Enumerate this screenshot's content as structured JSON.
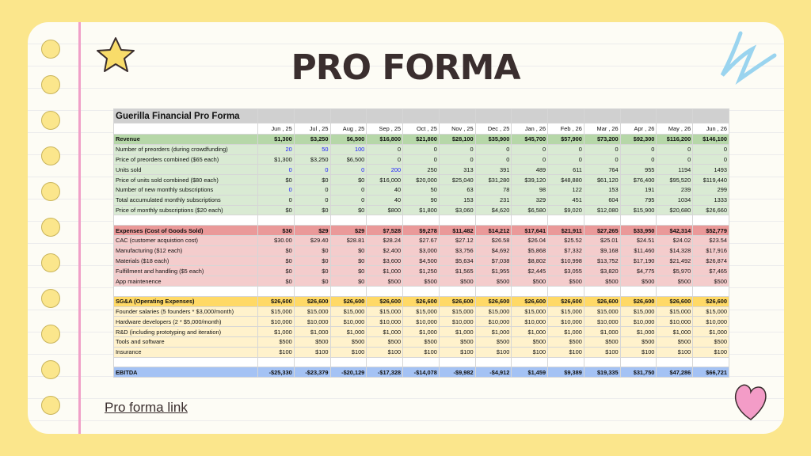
{
  "header": {
    "title": "PRO FORMA"
  },
  "table": {
    "title": "Guerilla Financial Pro Forma",
    "columns": [
      "Jun , 25",
      "Jul , 25",
      "Aug , 25",
      "Sep , 25",
      "Oct , 25",
      "Nov , 25",
      "Dec , 25",
      "Jan , 26",
      "Feb , 26",
      "Mar , 26",
      "Apr , 26",
      "May , 26",
      "Jun , 26"
    ],
    "sections": [
      {
        "rows": [
          {
            "label": "Revenue",
            "values": [
              "$1,300",
              "$3,250",
              "$6,500",
              "$16,800",
              "$21,800",
              "$28,100",
              "$35,900",
              "$45,700",
              "$57,900",
              "$73,200",
              "$92,300",
              "$116,200",
              "$146,100"
            ]
          },
          {
            "label": "Number of preorders (during crowdfunding)",
            "values": [
              "20",
              "50",
              "100",
              "0",
              "0",
              "0",
              "0",
              "0",
              "0",
              "0",
              "0",
              "0",
              "0"
            ]
          },
          {
            "label": "Price of preorders combined ($65 each)",
            "values": [
              "$1,300",
              "$3,250",
              "$6,500",
              "0",
              "0",
              "0",
              "0",
              "0",
              "0",
              "0",
              "0",
              "0",
              "0"
            ]
          },
          {
            "label": "Units sold",
            "values": [
              "0",
              "0",
              "0",
              "200",
              "250",
              "313",
              "391",
              "489",
              "611",
              "764",
              "955",
              "1194",
              "1493"
            ]
          },
          {
            "label": "Price of units sold combined ($80 each)",
            "values": [
              "$0",
              "$0",
              "$0",
              "$16,000",
              "$20,000",
              "$25,040",
              "$31,280",
              "$39,120",
              "$48,880",
              "$61,120",
              "$76,400",
              "$95,520",
              "$119,440"
            ]
          },
          {
            "label": "Number of new monthly subscriptions",
            "values": [
              "0",
              "0",
              "0",
              "40",
              "50",
              "63",
              "78",
              "98",
              "122",
              "153",
              "191",
              "239",
              "299"
            ]
          },
          {
            "label": "Total accumulated monthly subscriptions",
            "values": [
              "0",
              "0",
              "0",
              "40",
              "90",
              "153",
              "231",
              "329",
              "451",
              "604",
              "795",
              "1034",
              "1333"
            ]
          },
          {
            "label": "Price of monthly subscriptions ($20 each)",
            "values": [
              "$0",
              "$0",
              "$0",
              "$800",
              "$1,800",
              "$3,060",
              "$4,620",
              "$6,580",
              "$9,020",
              "$12,080",
              "$15,900",
              "$20,680",
              "$26,660"
            ]
          }
        ]
      },
      {
        "rows": [
          {
            "label": "Expenses (Cost of Goods Sold)",
            "values": [
              "$30",
              "$29",
              "$29",
              "$7,528",
              "$9,278",
              "$11,482",
              "$14,212",
              "$17,641",
              "$21,911",
              "$27,265",
              "$33,950",
              "$42,314",
              "$52,779"
            ]
          },
          {
            "label": "CAC (customer acquistion cost)",
            "values": [
              "$30.00",
              "$29.40",
              "$28.81",
              "$28.24",
              "$27.67",
              "$27.12",
              "$26.58",
              "$26.04",
              "$25.52",
              "$25.01",
              "$24.51",
              "$24.02",
              "$23.54"
            ]
          },
          {
            "label": "Manufacturing ($12 each)",
            "values": [
              "$0",
              "$0",
              "$0",
              "$2,400",
              "$3,000",
              "$3,756",
              "$4,692",
              "$5,868",
              "$7,332",
              "$9,168",
              "$11,460",
              "$14,328",
              "$17,916"
            ]
          },
          {
            "label": "Materials ($18 each)",
            "values": [
              "$0",
              "$0",
              "$0",
              "$3,600",
              "$4,500",
              "$5,634",
              "$7,038",
              "$8,802",
              "$10,998",
              "$13,752",
              "$17,190",
              "$21,492",
              "$26,874"
            ]
          },
          {
            "label": "Fulfillment and handling ($5 each)",
            "values": [
              "$0",
              "$0",
              "$0",
              "$1,000",
              "$1,250",
              "$1,565",
              "$1,955",
              "$2,445",
              "$3,055",
              "$3,820",
              "$4,775",
              "$5,970",
              "$7,465"
            ]
          },
          {
            "label": "App maintenence",
            "values": [
              "$0",
              "$0",
              "$0",
              "$500",
              "$500",
              "$500",
              "$500",
              "$500",
              "$500",
              "$500",
              "$500",
              "$500",
              "$500"
            ]
          }
        ]
      },
      {
        "rows": [
          {
            "label": "SG&A (Operating Expenses)",
            "values": [
              "$26,600",
              "$26,600",
              "$26,600",
              "$26,600",
              "$26,600",
              "$26,600",
              "$26,600",
              "$26,600",
              "$26,600",
              "$26,600",
              "$26,600",
              "$26,600",
              "$26,600"
            ]
          },
          {
            "label": "Founder salaries (5 founders * $3,000/month)",
            "values": [
              "$15,000",
              "$15,000",
              "$15,000",
              "$15,000",
              "$15,000",
              "$15,000",
              "$15,000",
              "$15,000",
              "$15,000",
              "$15,000",
              "$15,000",
              "$15,000",
              "$15,000"
            ]
          },
          {
            "label": "Hardware developers (2 * $5,000/month)",
            "values": [
              "$10,000",
              "$10,000",
              "$10,000",
              "$10,000",
              "$10,000",
              "$10,000",
              "$10,000",
              "$10,000",
              "$10,000",
              "$10,000",
              "$10,000",
              "$10,000",
              "$10,000"
            ]
          },
          {
            "label": "R&D (including prototyping and iteration)",
            "values": [
              "$1,000",
              "$1,000",
              "$1,000",
              "$1,000",
              "$1,000",
              "$1,000",
              "$1,000",
              "$1,000",
              "$1,000",
              "$1,000",
              "$1,000",
              "$1,000",
              "$1,000"
            ]
          },
          {
            "label": "Tools and software",
            "values": [
              "$500",
              "$500",
              "$500",
              "$500",
              "$500",
              "$500",
              "$500",
              "$500",
              "$500",
              "$500",
              "$500",
              "$500",
              "$500"
            ]
          },
          {
            "label": "Insurance",
            "values": [
              "$100",
              "$100",
              "$100",
              "$100",
              "$100",
              "$100",
              "$100",
              "$100",
              "$100",
              "$100",
              "$100",
              "$100",
              "$100"
            ]
          }
        ]
      },
      {
        "rows": [
          {
            "label": "EBITDA",
            "values": [
              "-$25,330",
              "-$23,379",
              "-$20,129",
              "-$17,328",
              "-$14,078",
              "-$9,982",
              "-$4,912",
              "$1,459",
              "$9,389",
              "$19,335",
              "$31,750",
              "$47,286",
              "$66,721"
            ]
          }
        ]
      }
    ]
  },
  "link": "Pro forma link"
}
